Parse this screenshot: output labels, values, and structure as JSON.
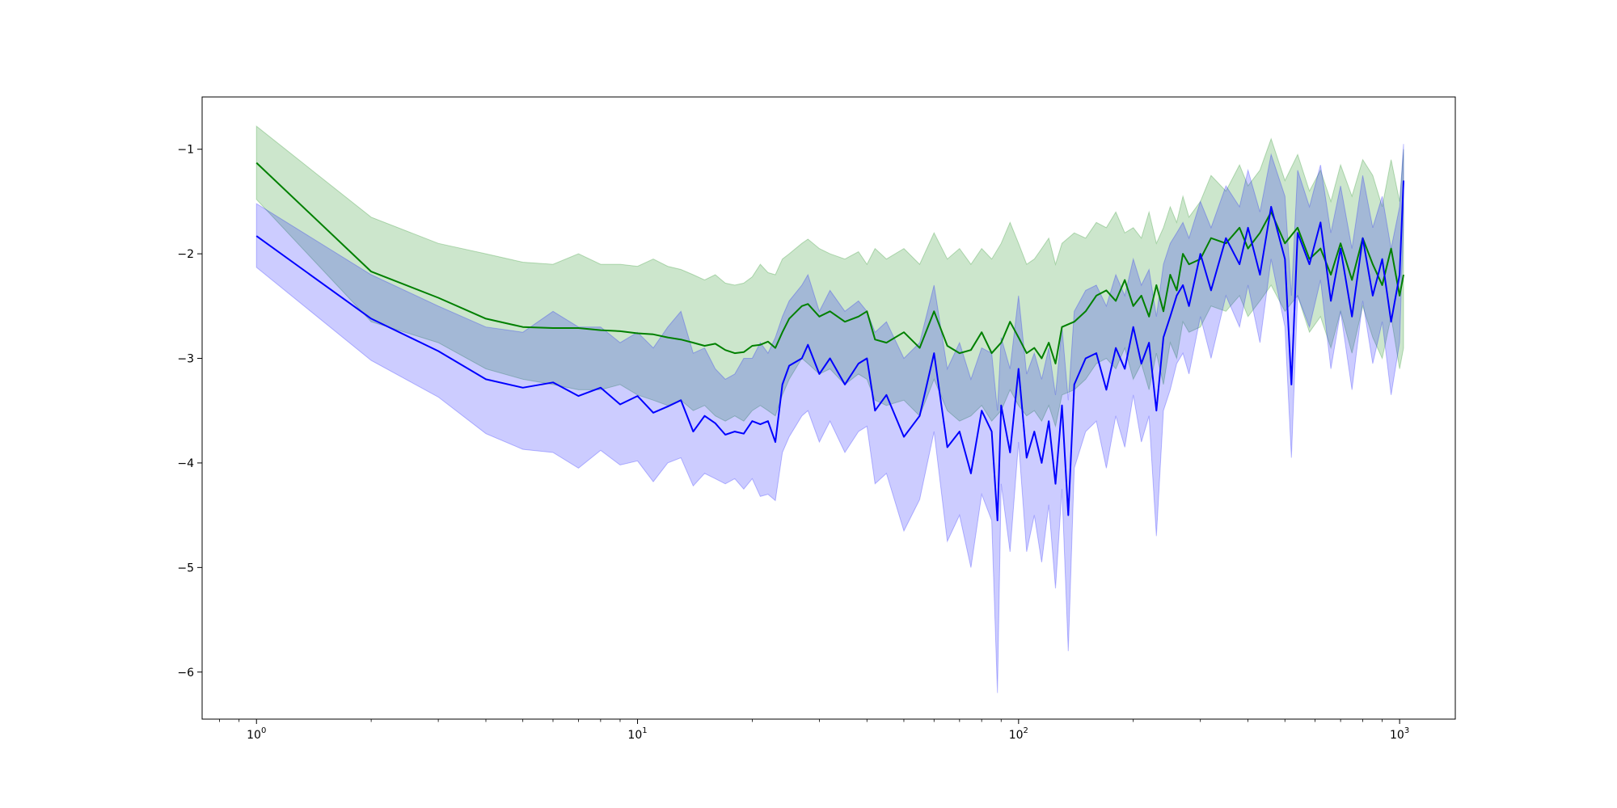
{
  "chart_data": {
    "type": "line",
    "title": "",
    "xlabel": "",
    "ylabel": "",
    "x_scale": "log",
    "xlim": [
      0.72,
      1400
    ],
    "ylim": [
      -6.45,
      -0.5
    ],
    "grid": false,
    "legend": "none",
    "x_ticks": [
      {
        "value": 1,
        "base": "10",
        "exp": "0"
      },
      {
        "value": 10,
        "base": "10",
        "exp": "1"
      },
      {
        "value": 100,
        "base": "10",
        "exp": "2"
      },
      {
        "value": 1000,
        "base": "10",
        "exp": "3"
      }
    ],
    "y_ticks": [
      {
        "value": -1,
        "label": "−1"
      },
      {
        "value": -2,
        "label": "−2"
      },
      {
        "value": -3,
        "label": "−3"
      },
      {
        "value": -4,
        "label": "−4"
      },
      {
        "value": -5,
        "label": "−5"
      },
      {
        "value": -6,
        "label": "−6"
      }
    ],
    "series": [
      {
        "color": "#008000",
        "band_color": "#008000",
        "band_opacity": 0.2,
        "x": [
          1,
          2,
          3,
          4,
          5,
          6,
          7,
          8,
          9,
          10,
          11,
          12,
          13,
          14,
          15,
          16,
          17,
          18,
          19,
          20,
          21,
          22,
          23,
          24,
          25,
          27,
          28,
          30,
          32,
          35,
          38,
          40,
          42,
          45,
          50,
          55,
          60,
          65,
          70,
          75,
          80,
          85,
          90,
          95,
          100,
          105,
          110,
          115,
          120,
          125,
          130,
          140,
          150,
          160,
          170,
          180,
          190,
          200,
          210,
          220,
          230,
          240,
          250,
          260,
          270,
          280,
          300,
          320,
          350,
          380,
          400,
          430,
          460,
          500,
          540,
          580,
          620,
          660,
          700,
          750,
          800,
          850,
          900,
          950,
          1000,
          1024
        ],
        "mean": [
          -1.13,
          -2.17,
          -2.42,
          -2.62,
          -2.7,
          -2.71,
          -2.71,
          -2.73,
          -2.74,
          -2.76,
          -2.77,
          -2.8,
          -2.82,
          -2.85,
          -2.88,
          -2.86,
          -2.92,
          -2.95,
          -2.94,
          -2.88,
          -2.87,
          -2.84,
          -2.9,
          -2.75,
          -2.62,
          -2.5,
          -2.48,
          -2.6,
          -2.55,
          -2.65,
          -2.6,
          -2.55,
          -2.82,
          -2.85,
          -2.75,
          -2.9,
          -2.55,
          -2.88,
          -2.95,
          -2.92,
          -2.75,
          -2.95,
          -2.85,
          -2.65,
          -2.8,
          -2.95,
          -2.9,
          -3.0,
          -2.85,
          -3.05,
          -2.7,
          -2.65,
          -2.55,
          -2.4,
          -2.35,
          -2.45,
          -2.25,
          -2.5,
          -2.4,
          -2.6,
          -2.3,
          -2.55,
          -2.2,
          -2.35,
          -2.0,
          -2.1,
          -2.05,
          -1.85,
          -1.9,
          -1.75,
          -1.95,
          -1.8,
          -1.6,
          -1.9,
          -1.75,
          -2.05,
          -1.95,
          -2.2,
          -1.9,
          -2.25,
          -1.85,
          -2.1,
          -2.3,
          -1.95,
          -2.4,
          -2.2
        ],
        "upper": [
          -0.78,
          -1.65,
          -1.9,
          -2.0,
          -2.08,
          -2.1,
          -2.0,
          -2.1,
          -2.1,
          -2.12,
          -2.05,
          -2.12,
          -2.15,
          -2.2,
          -2.25,
          -2.2,
          -2.28,
          -2.3,
          -2.28,
          -2.22,
          -2.1,
          -2.18,
          -2.2,
          -2.05,
          -2.0,
          -1.9,
          -1.86,
          -1.95,
          -2.0,
          -2.05,
          -1.98,
          -2.1,
          -1.95,
          -2.05,
          -1.95,
          -2.1,
          -1.8,
          -2.05,
          -1.95,
          -2.1,
          -1.95,
          -2.05,
          -1.9,
          -1.7,
          -1.9,
          -2.1,
          -2.05,
          -1.95,
          -1.85,
          -2.1,
          -1.9,
          -1.8,
          -1.85,
          -1.7,
          -1.75,
          -1.6,
          -1.8,
          -1.75,
          -1.85,
          -1.6,
          -1.9,
          -1.75,
          -1.55,
          -1.7,
          -1.45,
          -1.65,
          -1.5,
          -1.25,
          -1.4,
          -1.15,
          -1.35,
          -1.2,
          -0.9,
          -1.3,
          -1.05,
          -1.4,
          -1.2,
          -1.5,
          -1.15,
          -1.45,
          -1.1,
          -1.25,
          -1.55,
          -1.1,
          -1.5,
          -1.0
        ],
        "lower": [
          -1.48,
          -2.65,
          -2.85,
          -3.1,
          -3.2,
          -3.25,
          -3.3,
          -3.3,
          -3.25,
          -3.35,
          -3.4,
          -3.45,
          -3.4,
          -3.5,
          -3.45,
          -3.55,
          -3.6,
          -3.55,
          -3.6,
          -3.5,
          -3.45,
          -3.5,
          -3.55,
          -3.35,
          -3.2,
          -3.0,
          -3.05,
          -3.15,
          -3.1,
          -3.25,
          -3.15,
          -3.2,
          -3.4,
          -3.45,
          -3.4,
          -3.55,
          -3.2,
          -3.5,
          -3.6,
          -3.55,
          -3.45,
          -3.6,
          -3.5,
          -3.3,
          -3.45,
          -3.55,
          -3.5,
          -3.6,
          -3.45,
          -3.65,
          -3.35,
          -3.3,
          -3.2,
          -3.05,
          -3.0,
          -3.1,
          -2.9,
          -3.2,
          -3.05,
          -3.3,
          -2.95,
          -3.25,
          -2.85,
          -3.0,
          -2.65,
          -2.75,
          -2.7,
          -2.5,
          -2.55,
          -2.4,
          -2.6,
          -2.45,
          -2.3,
          -2.55,
          -2.4,
          -2.75,
          -2.6,
          -2.9,
          -2.55,
          -2.95,
          -2.5,
          -2.8,
          -3.0,
          -2.6,
          -3.1,
          -2.9
        ]
      },
      {
        "color": "#0000ff",
        "band_color": "#0000ff",
        "band_opacity": 0.2,
        "x": [
          1,
          2,
          3,
          4,
          5,
          6,
          7,
          8,
          9,
          10,
          11,
          12,
          13,
          14,
          15,
          16,
          17,
          18,
          19,
          20,
          21,
          22,
          23,
          24,
          25,
          27,
          28,
          30,
          32,
          35,
          38,
          40,
          42,
          45,
          50,
          55,
          60,
          65,
          70,
          75,
          80,
          85,
          88,
          90,
          95,
          100,
          105,
          110,
          115,
          120,
          125,
          130,
          135,
          140,
          150,
          160,
          170,
          180,
          190,
          200,
          210,
          220,
          230,
          240,
          250,
          260,
          270,
          280,
          300,
          320,
          350,
          380,
          400,
          430,
          460,
          500,
          520,
          540,
          580,
          620,
          660,
          700,
          750,
          800,
          850,
          900,
          950,
          1000,
          1024
        ],
        "mean": [
          -1.83,
          -2.62,
          -2.93,
          -3.2,
          -3.28,
          -3.23,
          -3.36,
          -3.28,
          -3.44,
          -3.36,
          -3.52,
          -3.46,
          -3.4,
          -3.7,
          -3.55,
          -3.62,
          -3.73,
          -3.7,
          -3.72,
          -3.6,
          -3.63,
          -3.6,
          -3.8,
          -3.25,
          -3.07,
          -3.0,
          -2.87,
          -3.15,
          -3.0,
          -3.25,
          -3.05,
          -3.0,
          -3.5,
          -3.35,
          -3.75,
          -3.55,
          -2.95,
          -3.85,
          -3.7,
          -4.1,
          -3.5,
          -3.7,
          -4.55,
          -3.45,
          -3.9,
          -3.1,
          -3.95,
          -3.7,
          -4.0,
          -3.6,
          -4.2,
          -3.45,
          -4.5,
          -3.25,
          -3.0,
          -2.95,
          -3.3,
          -2.9,
          -3.1,
          -2.7,
          -3.05,
          -2.85,
          -3.5,
          -2.8,
          -2.6,
          -2.4,
          -2.3,
          -2.5,
          -2.0,
          -2.35,
          -1.85,
          -2.1,
          -1.75,
          -2.2,
          -1.55,
          -2.05,
          -3.25,
          -1.8,
          -2.1,
          -1.7,
          -2.45,
          -1.95,
          -2.6,
          -1.85,
          -2.4,
          -2.05,
          -2.65,
          -2.2,
          -1.3
        ],
        "upper": [
          -1.52,
          -2.2,
          -2.5,
          -2.7,
          -2.75,
          -2.55,
          -2.7,
          -2.7,
          -2.85,
          -2.75,
          -2.9,
          -2.7,
          -2.55,
          -2.95,
          -2.9,
          -3.1,
          -3.2,
          -3.15,
          -3.0,
          -3.0,
          -2.85,
          -2.95,
          -2.8,
          -2.6,
          -2.45,
          -2.3,
          -2.2,
          -2.55,
          -2.35,
          -2.55,
          -2.45,
          -2.55,
          -2.75,
          -2.65,
          -3.0,
          -2.85,
          -2.3,
          -3.1,
          -2.85,
          -3.2,
          -2.9,
          -2.95,
          -3.5,
          -2.8,
          -3.1,
          -2.4,
          -3.15,
          -2.95,
          -3.2,
          -2.9,
          -3.35,
          -2.7,
          -3.4,
          -2.55,
          -2.35,
          -2.3,
          -2.5,
          -2.2,
          -2.4,
          -2.05,
          -2.3,
          -2.15,
          -2.6,
          -2.1,
          -1.9,
          -1.8,
          -1.7,
          -1.85,
          -1.5,
          -1.75,
          -1.35,
          -1.55,
          -1.2,
          -1.6,
          -1.05,
          -1.45,
          -2.4,
          -1.2,
          -1.55,
          -1.15,
          -1.8,
          -1.35,
          -1.95,
          -1.25,
          -1.75,
          -1.45,
          -1.95,
          -1.55,
          -0.95
        ],
        "lower": [
          -2.13,
          -3.02,
          -3.37,
          -3.72,
          -3.87,
          -3.9,
          -4.05,
          -3.88,
          -4.02,
          -3.98,
          -4.18,
          -4.0,
          -3.95,
          -4.22,
          -4.1,
          -4.15,
          -4.2,
          -4.15,
          -4.25,
          -4.15,
          -4.32,
          -4.3,
          -4.36,
          -3.9,
          -3.75,
          -3.55,
          -3.5,
          -3.8,
          -3.6,
          -3.9,
          -3.7,
          -3.65,
          -4.2,
          -4.1,
          -4.65,
          -4.35,
          -3.7,
          -4.75,
          -4.5,
          -5.0,
          -4.3,
          -4.55,
          -6.2,
          -4.2,
          -4.85,
          -3.8,
          -4.85,
          -4.5,
          -4.95,
          -4.4,
          -5.2,
          -4.25,
          -5.8,
          -4.05,
          -3.7,
          -3.6,
          -4.05,
          -3.55,
          -3.85,
          -3.35,
          -3.8,
          -3.55,
          -4.7,
          -3.5,
          -3.3,
          -3.05,
          -2.95,
          -3.15,
          -2.6,
          -3.0,
          -2.4,
          -2.7,
          -2.3,
          -2.85,
          -2.05,
          -2.7,
          -3.95,
          -2.4,
          -2.7,
          -2.25,
          -3.1,
          -2.55,
          -3.3,
          -2.45,
          -3.05,
          -2.65,
          -3.35,
          -2.85,
          -1.7
        ]
      }
    ]
  }
}
